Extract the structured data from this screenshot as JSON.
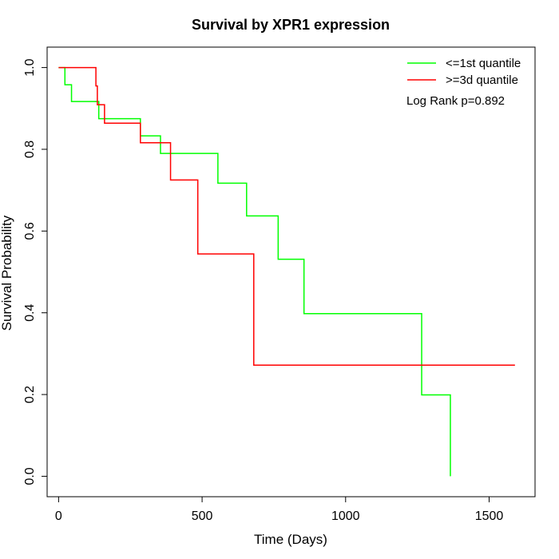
{
  "chart_data": {
    "type": "line",
    "title": "Survival by XPR1 expression",
    "xlabel": "Time (Days)",
    "ylabel": "Survival Probability",
    "xlim": [
      -40,
      1660
    ],
    "ylim": [
      -0.05,
      1.05
    ],
    "x_ticks": [
      0,
      500,
      1000,
      1500
    ],
    "y_ticks": [
      0.0,
      0.2,
      0.4,
      0.6,
      0.8,
      1.0
    ],
    "x_tick_labels": [
      "0",
      "500",
      "1000",
      "1500"
    ],
    "y_tick_labels": [
      "0.0",
      "0.2",
      "0.4",
      "0.6",
      "0.8",
      "1.0"
    ],
    "grid": false,
    "legend_position": "top-right",
    "annotation": "Log Rank p=0.892",
    "series": [
      {
        "name": "<=1st quantile",
        "color": "#00ff00",
        "step": true,
        "x": [
          0,
          22,
          45,
          140,
          160,
          285,
          355,
          555,
          655,
          765,
          855,
          1265,
          1365,
          1365
        ],
        "y": [
          1.0,
          0.958,
          0.917,
          0.875,
          0.875,
          0.833,
          0.79,
          0.717,
          0.637,
          0.531,
          0.398,
          0.199,
          0.0,
          0.0
        ]
      },
      {
        "name": ">=3d quantile",
        "color": "#ff0000",
        "step": true,
        "x": [
          0,
          130,
          135,
          160,
          285,
          390,
          485,
          680,
          1590
        ],
        "y": [
          1.0,
          0.955,
          0.909,
          0.864,
          0.816,
          0.725,
          0.544,
          0.272,
          0.272
        ]
      }
    ]
  }
}
